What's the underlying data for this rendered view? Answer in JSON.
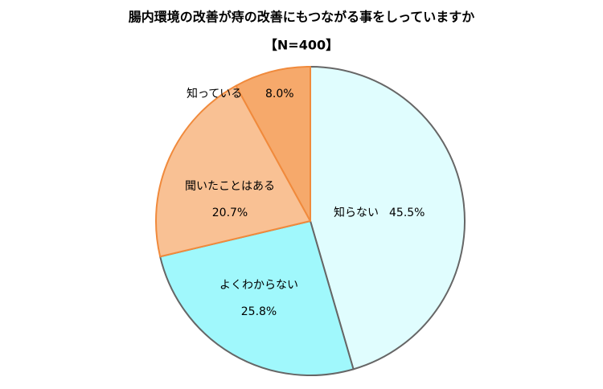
{
  "chart_data": {
    "type": "pie",
    "title": "腸内環境の改善が痔の改善にもつながる事をしっていますか",
    "subtitle": "【N=400】",
    "categories": [
      "知らない",
      "よくわからない",
      "聞いたことはある",
      "知っている"
    ],
    "values": [
      45.5,
      25.8,
      20.7,
      8.0
    ],
    "value_labels": [
      "45.5%",
      "25.8%",
      "20.7%",
      "8.0%"
    ],
    "colors": [
      "#e0fdfe",
      "#a0f8fc",
      "#f9c194",
      "#f6a96b"
    ],
    "edge_colors": [
      "#666666",
      "#666666",
      "#f08a3c",
      "#f08a3c"
    ]
  }
}
